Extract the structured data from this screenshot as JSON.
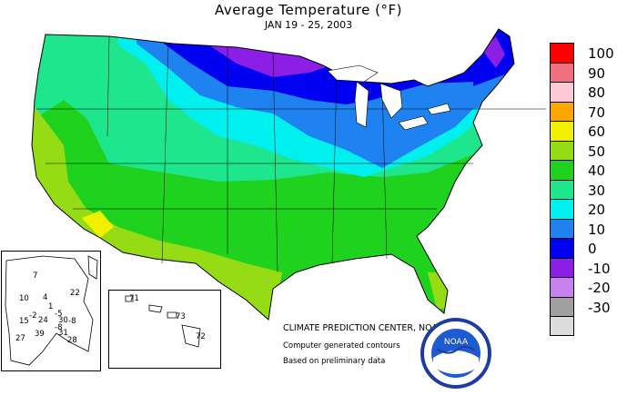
{
  "header": {
    "title": "Average Temperature (°F)",
    "subtitle": "JAN 19 - 25, 2003"
  },
  "legend": {
    "items": [
      {
        "label": "100",
        "color": "#ff0000"
      },
      {
        "label": "90",
        "color": "#f07080"
      },
      {
        "label": "80",
        "color": "#ffc8d8"
      },
      {
        "label": "70",
        "color": "#ffa500"
      },
      {
        "label": "60",
        "color": "#f0f000"
      },
      {
        "label": "50",
        "color": "#96dc14"
      },
      {
        "label": "40",
        "color": "#1ed21e"
      },
      {
        "label": "30",
        "color": "#1ee68c"
      },
      {
        "label": "20",
        "color": "#00f0f0"
      },
      {
        "label": "10",
        "color": "#1e82f0"
      },
      {
        "label": "0",
        "color": "#0000f0"
      },
      {
        "label": "-10",
        "color": "#8c1ee6"
      },
      {
        "label": "-20",
        "color": "#c882f0"
      },
      {
        "label": "-30",
        "color": "#a0a0a0"
      },
      {
        "label": "",
        "color": "#dcdcdc"
      }
    ]
  },
  "credits": {
    "line1": "CLIMATE PREDICTION CENTER, NOAA",
    "line2": "Computer generated contours",
    "line3": "Based on preliminary data"
  },
  "alaska_values": [
    "7",
    "22",
    "10",
    "4",
    "1",
    "-5",
    "-2",
    "-8",
    "15",
    "24",
    "30",
    "-8",
    "27",
    "39",
    "31",
    "28"
  ],
  "hawaii_values": [
    "71",
    "73",
    "72"
  ],
  "logo": {
    "text": "NOAA"
  }
}
